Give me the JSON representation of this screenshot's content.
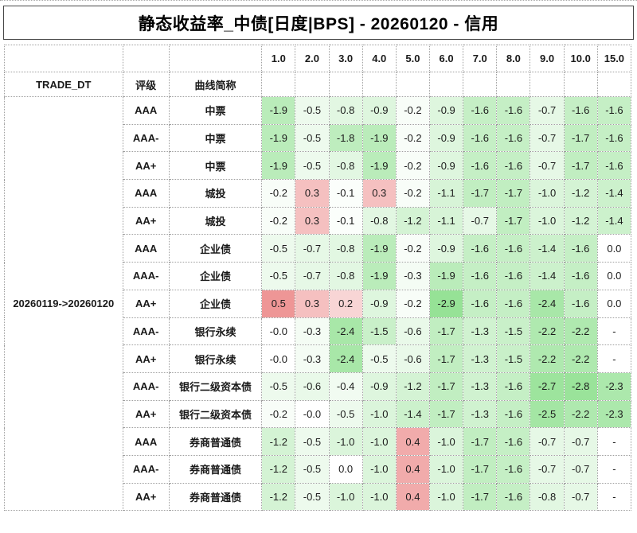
{
  "title": "静态收益率_中债[日度|BPS] - 20260120 - 信用",
  "table": {
    "trade_dt_label": "TRADE_DT",
    "rating_label": "评级",
    "curve_label": "曲线简称",
    "trade_dt_value": "20260119->20260120",
    "tenors": [
      "1.0",
      "2.0",
      "3.0",
      "4.0",
      "5.0",
      "6.0",
      "7.0",
      "8.0",
      "9.0",
      "10.0",
      "15.0"
    ],
    "rows": [
      {
        "rating": "AAA",
        "curve": "中票",
        "values": [
          "-1.9",
          "-0.5",
          "-0.8",
          "-0.9",
          "-0.2",
          "-0.9",
          "-1.6",
          "-1.6",
          "-0.7",
          "-1.6",
          "-1.6"
        ]
      },
      {
        "rating": "AAA-",
        "curve": "中票",
        "values": [
          "-1.9",
          "-0.5",
          "-1.8",
          "-1.9",
          "-0.2",
          "-0.9",
          "-1.6",
          "-1.6",
          "-0.7",
          "-1.7",
          "-1.6"
        ]
      },
      {
        "rating": "AA+",
        "curve": "中票",
        "values": [
          "-1.9",
          "-0.5",
          "-0.8",
          "-1.9",
          "-0.2",
          "-0.9",
          "-1.6",
          "-1.6",
          "-0.7",
          "-1.7",
          "-1.6"
        ]
      },
      {
        "rating": "AAA",
        "curve": "城投",
        "values": [
          "-0.2",
          "0.3",
          "-0.1",
          "0.3",
          "-0.2",
          "-1.1",
          "-1.7",
          "-1.7",
          "-1.0",
          "-1.2",
          "-1.4"
        ]
      },
      {
        "rating": "AA+",
        "curve": "城投",
        "values": [
          "-0.2",
          "0.3",
          "-0.1",
          "-0.8",
          "-1.2",
          "-1.1",
          "-0.7",
          "-1.7",
          "-1.0",
          "-1.2",
          "-1.4"
        ]
      },
      {
        "rating": "AAA",
        "curve": "企业债",
        "values": [
          "-0.5",
          "-0.7",
          "-0.8",
          "-1.9",
          "-0.2",
          "-0.9",
          "-1.6",
          "-1.6",
          "-1.4",
          "-1.6",
          "0.0"
        ]
      },
      {
        "rating": "AAA-",
        "curve": "企业债",
        "values": [
          "-0.5",
          "-0.7",
          "-0.8",
          "-1.9",
          "-0.3",
          "-1.9",
          "-1.6",
          "-1.6",
          "-1.4",
          "-1.6",
          "0.0"
        ]
      },
      {
        "rating": "AA+",
        "curve": "企业债",
        "values": [
          "0.5",
          "0.3",
          "0.2",
          "-0.9",
          "-0.2",
          "-2.9",
          "-1.6",
          "-1.6",
          "-2.4",
          "-1.6",
          "0.0"
        ]
      },
      {
        "rating": "AAA-",
        "curve": "银行永续",
        "values": [
          "-0.0",
          "-0.3",
          "-2.4",
          "-1.5",
          "-0.6",
          "-1.7",
          "-1.3",
          "-1.5",
          "-2.2",
          "-2.2",
          "-"
        ]
      },
      {
        "rating": "AA+",
        "curve": "银行永续",
        "values": [
          "-0.0",
          "-0.3",
          "-2.4",
          "-0.5",
          "-0.6",
          "-1.7",
          "-1.3",
          "-1.5",
          "-2.2",
          "-2.2",
          "-"
        ]
      },
      {
        "rating": "AAA-",
        "curve": "银行二级资本债",
        "values": [
          "-0.5",
          "-0.6",
          "-0.4",
          "-0.9",
          "-1.2",
          "-1.7",
          "-1.3",
          "-1.6",
          "-2.7",
          "-2.8",
          "-2.3"
        ]
      },
      {
        "rating": "AA+",
        "curve": "银行二级资本债",
        "values": [
          "-0.2",
          "-0.0",
          "-0.5",
          "-1.0",
          "-1.4",
          "-1.7",
          "-1.3",
          "-1.6",
          "-2.5",
          "-2.2",
          "-2.3"
        ]
      },
      {
        "rating": "AAA",
        "curve": "券商普通债",
        "values": [
          "-1.2",
          "-0.5",
          "-1.0",
          "-1.0",
          "0.4",
          "-1.0",
          "-1.7",
          "-1.6",
          "-0.7",
          "-0.7",
          "-"
        ]
      },
      {
        "rating": "AAA-",
        "curve": "券商普通债",
        "values": [
          "-1.2",
          "-0.5",
          "0.0",
          "-1.0",
          "0.4",
          "-1.0",
          "-1.7",
          "-1.6",
          "-0.7",
          "-0.7",
          "-"
        ]
      },
      {
        "rating": "AA+",
        "curve": "券商普通债",
        "values": [
          "-1.2",
          "-0.5",
          "-1.0",
          "-1.0",
          "0.4",
          "-1.0",
          "-1.7",
          "-1.6",
          "-0.8",
          "-0.7",
          "-"
        ]
      }
    ]
  },
  "colors": {
    "green_max": "#96E296",
    "red_max": "#EE9696",
    "neutral": "#FFFFFF",
    "scale_min": -2.9,
    "scale_max": 0.5,
    "alt_row_bg": "#F2F2F2",
    "grid_border": "#9F9F9F",
    "title_border": "#474747"
  },
  "chart_data": {
    "type": "heatmap",
    "title": "静态收益率_中债[日度|BPS] - 20260120 - 信用",
    "unit": "BPS",
    "period": "20260119->20260120",
    "x_categories": [
      1.0,
      2.0,
      3.0,
      4.0,
      5.0,
      6.0,
      7.0,
      8.0,
      9.0,
      10.0,
      15.0
    ],
    "series": [
      {
        "name": "AAA 中票",
        "values": [
          -1.9,
          -0.5,
          -0.8,
          -0.9,
          -0.2,
          -0.9,
          -1.6,
          -1.6,
          -0.7,
          -1.6,
          -1.6
        ]
      },
      {
        "name": "AAA- 中票",
        "values": [
          -1.9,
          -0.5,
          -1.8,
          -1.9,
          -0.2,
          -0.9,
          -1.6,
          -1.6,
          -0.7,
          -1.7,
          -1.6
        ]
      },
      {
        "name": "AA+ 中票",
        "values": [
          -1.9,
          -0.5,
          -0.8,
          -1.9,
          -0.2,
          -0.9,
          -1.6,
          -1.6,
          -0.7,
          -1.7,
          -1.6
        ]
      },
      {
        "name": "AAA 城投",
        "values": [
          -0.2,
          0.3,
          -0.1,
          0.3,
          -0.2,
          -1.1,
          -1.7,
          -1.7,
          -1.0,
          -1.2,
          -1.4
        ]
      },
      {
        "name": "AA+ 城投",
        "values": [
          -0.2,
          0.3,
          -0.1,
          -0.8,
          -1.2,
          -1.1,
          -0.7,
          -1.7,
          -1.0,
          -1.2,
          -1.4
        ]
      },
      {
        "name": "AAA 企业债",
        "values": [
          -0.5,
          -0.7,
          -0.8,
          -1.9,
          -0.2,
          -0.9,
          -1.6,
          -1.6,
          -1.4,
          -1.6,
          0.0
        ]
      },
      {
        "name": "AAA- 企业债",
        "values": [
          -0.5,
          -0.7,
          -0.8,
          -1.9,
          -0.3,
          -1.9,
          -1.6,
          -1.6,
          -1.4,
          -1.6,
          0.0
        ]
      },
      {
        "name": "AA+ 企业债",
        "values": [
          0.5,
          0.3,
          0.2,
          -0.9,
          -0.2,
          -2.9,
          -1.6,
          -1.6,
          -2.4,
          -1.6,
          0.0
        ]
      },
      {
        "name": "AAA- 银行永续",
        "values": [
          -0.0,
          -0.3,
          -2.4,
          -1.5,
          -0.6,
          -1.7,
          -1.3,
          -1.5,
          -2.2,
          -2.2,
          null
        ]
      },
      {
        "name": "AA+ 银行永续",
        "values": [
          -0.0,
          -0.3,
          -2.4,
          -0.5,
          -0.6,
          -1.7,
          -1.3,
          -1.5,
          -2.2,
          -2.2,
          null
        ]
      },
      {
        "name": "AAA- 银行二级资本债",
        "values": [
          -0.5,
          -0.6,
          -0.4,
          -0.9,
          -1.2,
          -1.7,
          -1.3,
          -1.6,
          -2.7,
          -2.8,
          -2.3
        ]
      },
      {
        "name": "AA+ 银行二级资本债",
        "values": [
          -0.2,
          -0.0,
          -0.5,
          -1.0,
          -1.4,
          -1.7,
          -1.3,
          -1.6,
          -2.5,
          -2.2,
          -2.3
        ]
      },
      {
        "name": "AAA 券商普通债",
        "values": [
          -1.2,
          -0.5,
          -1.0,
          -1.0,
          0.4,
          -1.0,
          -1.7,
          -1.6,
          -0.7,
          -0.7,
          null
        ]
      },
      {
        "name": "AAA- 券商普通债",
        "values": [
          -1.2,
          -0.5,
          0.0,
          -1.0,
          0.4,
          -1.0,
          -1.7,
          -1.6,
          -0.7,
          -0.7,
          null
        ]
      },
      {
        "name": "AA+ 券商普通债",
        "values": [
          -1.2,
          -0.5,
          -1.0,
          -1.0,
          0.4,
          -1.0,
          -1.7,
          -1.6,
          -0.8,
          -0.7,
          null
        ]
      }
    ],
    "color_scale": {
      "domain": [
        -2.9,
        0.5
      ],
      "negative_color": "#96E296",
      "zero_color": "#FFFFFF",
      "positive_color": "#EE9696"
    },
    "legend_position": "none",
    "grid": true
  }
}
